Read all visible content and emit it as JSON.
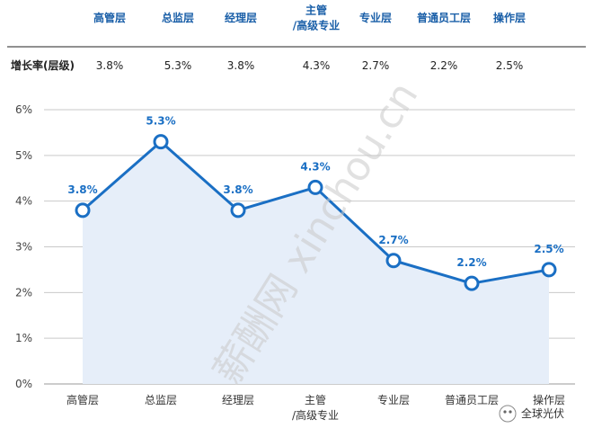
{
  "chart_data": {
    "type": "line",
    "categories": [
      "高管层",
      "总监层",
      "经理层",
      "主管\n/高级专业",
      "专业层",
      "普通员工层",
      "操作层"
    ],
    "values": [
      3.8,
      5.3,
      3.8,
      4.3,
      2.7,
      2.2,
      2.5
    ],
    "data_labels": [
      "3.8%",
      "5.3%",
      "3.8%",
      "4.3%",
      "2.7%",
      "2.2%",
      "2.5%"
    ],
    "y_ticks": [
      "0%",
      "1%",
      "2%",
      "3%",
      "4%",
      "5%",
      "6%"
    ],
    "ylim": [
      0,
      6
    ],
    "grid": true,
    "line_color": "#1a6fc4",
    "area_color": "#e6eef9",
    "marker_face": "#ffffff"
  },
  "table": {
    "row_label": "增长率(层级)",
    "headers": [
      "高管层",
      "总监层",
      "经理层",
      "主管\n/高级专业",
      "专业层",
      "普通员工层",
      "操作层"
    ],
    "values": [
      "3.8%",
      "5.3%",
      "3.8%",
      "4.3%",
      "2.7%",
      "2.2%",
      "2.5%"
    ],
    "header_color": "#1a5fa8"
  },
  "watermark": {
    "text": "薪酬网 xinchou.cn",
    "corner_text": "全球光伏"
  }
}
